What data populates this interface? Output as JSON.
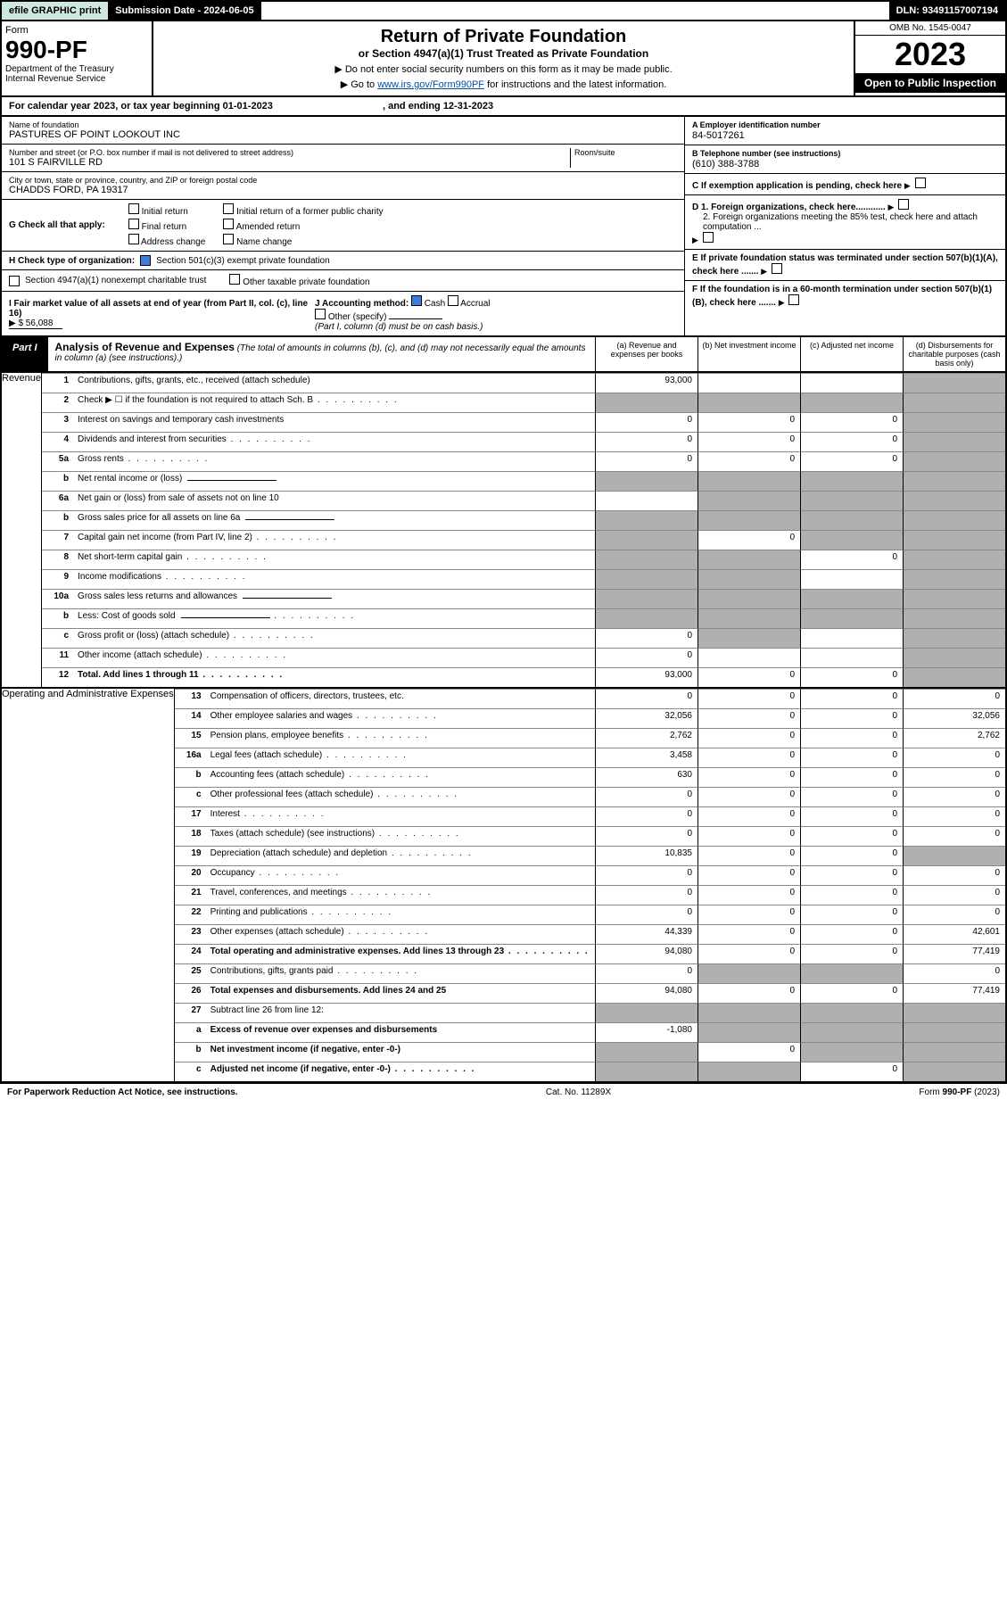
{
  "topbar": {
    "efile": "efile GRAPHIC print",
    "subdate_label": "Submission Date - 2024-06-05",
    "dln": "DLN: 93491157007194"
  },
  "header": {
    "form_label": "Form",
    "form_no": "990-PF",
    "dept": "Department of the Treasury\nInternal Revenue Service",
    "title": "Return of Private Foundation",
    "subtitle": "or Section 4947(a)(1) Trust Treated as Private Foundation",
    "note1": "▶ Do not enter social security numbers on this form as it may be made public.",
    "note2_pre": "▶ Go to ",
    "note2_link": "www.irs.gov/Form990PF",
    "note2_post": " for instructions and the latest information.",
    "omb": "OMB No. 1545-0047",
    "year": "2023",
    "open": "Open to Public Inspection"
  },
  "calyear": {
    "text": "For calendar year 2023, or tax year beginning 01-01-2023",
    "ending": ", and ending 12-31-2023"
  },
  "entity": {
    "name_lbl": "Name of foundation",
    "name": "PASTURES OF POINT LOOKOUT INC",
    "addr_lbl": "Number and street (or P.O. box number if mail is not delivered to street address)",
    "addr": "101 S FAIRVILLE RD",
    "room_lbl": "Room/suite",
    "city_lbl": "City or town, state or province, country, and ZIP or foreign postal code",
    "city": "CHADDS FORD, PA  19317",
    "ein_lbl": "A Employer identification number",
    "ein": "84-5017261",
    "tel_lbl": "B Telephone number (see instructions)",
    "tel": "(610) 388-3788",
    "c_lbl": "C If exemption application is pending, check here",
    "d1_lbl": "D 1. Foreign organizations, check here............",
    "d2_lbl": "2. Foreign organizations meeting the 85% test, check here and attach computation ...",
    "e_lbl": "E  If private foundation status was terminated under section 507(b)(1)(A), check here .......",
    "f_lbl": "F  If the foundation is in a 60-month termination under section 507(b)(1)(B), check here .......",
    "g_lbl": "G Check all that apply:",
    "g_opts": [
      "Initial return",
      "Final return",
      "Address change",
      "Initial return of a former public charity",
      "Amended return",
      "Name change"
    ],
    "h_lbl": "H Check type of organization:",
    "h1": "Section 501(c)(3) exempt private foundation",
    "h2": "Section 4947(a)(1) nonexempt charitable trust",
    "h3": "Other taxable private foundation",
    "i_lbl": "I Fair market value of all assets at end of year (from Part II, col. (c), line 16)",
    "i_val": "▶ $  56,088",
    "j_lbl": "J Accounting method:",
    "j_cash": "Cash",
    "j_accrual": "Accrual",
    "j_other": "Other (specify)",
    "j_note": "(Part I, column (d) must be on cash basis.)"
  },
  "part1": {
    "tab": "Part I",
    "title": "Analysis of Revenue and Expenses",
    "note": "(The total of amounts in columns (b), (c), and (d) may not necessarily equal the amounts in column (a) (see instructions).)",
    "col_a": "(a) Revenue and expenses per books",
    "col_b": "(b) Net investment income",
    "col_c": "(c) Adjusted net income",
    "col_d": "(d) Disbursements for charitable purposes (cash basis only)"
  },
  "sections": {
    "revenue": "Revenue",
    "expenses": "Operating and Administrative Expenses"
  },
  "rows": [
    {
      "n": "1",
      "t": "Contributions, gifts, grants, etc., received (attach schedule)",
      "a": "93,000",
      "b": "",
      "c": "",
      "d": "shade"
    },
    {
      "n": "2",
      "t": "Check ▶ ☐ if the foundation is not required to attach Sch. B",
      "a": "shade",
      "b": "shade",
      "c": "shade",
      "d": "shade",
      "dots": true
    },
    {
      "n": "3",
      "t": "Interest on savings and temporary cash investments",
      "a": "0",
      "b": "0",
      "c": "0",
      "d": "shade"
    },
    {
      "n": "4",
      "t": "Dividends and interest from securities",
      "a": "0",
      "b": "0",
      "c": "0",
      "d": "shade",
      "dots": true
    },
    {
      "n": "5a",
      "t": "Gross rents",
      "a": "0",
      "b": "0",
      "c": "0",
      "d": "shade",
      "dots": true
    },
    {
      "n": "b",
      "t": "Net rental income or (loss)",
      "a": "shade",
      "b": "shade",
      "c": "shade",
      "d": "shade",
      "inline": true
    },
    {
      "n": "6a",
      "t": "Net gain or (loss) from sale of assets not on line 10",
      "a": "",
      "b": "shade",
      "c": "shade",
      "d": "shade"
    },
    {
      "n": "b",
      "t": "Gross sales price for all assets on line 6a",
      "a": "shade",
      "b": "shade",
      "c": "shade",
      "d": "shade",
      "inline": true
    },
    {
      "n": "7",
      "t": "Capital gain net income (from Part IV, line 2)",
      "a": "shade",
      "b": "0",
      "c": "shade",
      "d": "shade",
      "dots": true
    },
    {
      "n": "8",
      "t": "Net short-term capital gain",
      "a": "shade",
      "b": "shade",
      "c": "0",
      "d": "shade",
      "dots": true
    },
    {
      "n": "9",
      "t": "Income modifications",
      "a": "shade",
      "b": "shade",
      "c": "",
      "d": "shade",
      "dots": true
    },
    {
      "n": "10a",
      "t": "Gross sales less returns and allowances",
      "a": "shade",
      "b": "shade",
      "c": "shade",
      "d": "shade",
      "inline": true
    },
    {
      "n": "b",
      "t": "Less: Cost of goods sold",
      "a": "shade",
      "b": "shade",
      "c": "shade",
      "d": "shade",
      "inline": true,
      "dots": true
    },
    {
      "n": "c",
      "t": "Gross profit or (loss) (attach schedule)",
      "a": "0",
      "b": "shade",
      "c": "",
      "d": "shade",
      "dots": true
    },
    {
      "n": "11",
      "t": "Other income (attach schedule)",
      "a": "0",
      "b": "",
      "c": "",
      "d": "shade",
      "dots": true
    },
    {
      "n": "12",
      "t": "Total. Add lines 1 through 11",
      "a": "93,000",
      "b": "0",
      "c": "0",
      "d": "shade",
      "bold": true,
      "dots": true
    }
  ],
  "exp_rows": [
    {
      "n": "13",
      "t": "Compensation of officers, directors, trustees, etc.",
      "a": "0",
      "b": "0",
      "c": "0",
      "d": "0"
    },
    {
      "n": "14",
      "t": "Other employee salaries and wages",
      "a": "32,056",
      "b": "0",
      "c": "0",
      "d": "32,056",
      "dots": true
    },
    {
      "n": "15",
      "t": "Pension plans, employee benefits",
      "a": "2,762",
      "b": "0",
      "c": "0",
      "d": "2,762",
      "dots": true
    },
    {
      "n": "16a",
      "t": "Legal fees (attach schedule)",
      "a": "3,458",
      "b": "0",
      "c": "0",
      "d": "0",
      "dots": true
    },
    {
      "n": "b",
      "t": "Accounting fees (attach schedule)",
      "a": "630",
      "b": "0",
      "c": "0",
      "d": "0",
      "dots": true
    },
    {
      "n": "c",
      "t": "Other professional fees (attach schedule)",
      "a": "0",
      "b": "0",
      "c": "0",
      "d": "0",
      "dots": true
    },
    {
      "n": "17",
      "t": "Interest",
      "a": "0",
      "b": "0",
      "c": "0",
      "d": "0",
      "dots": true
    },
    {
      "n": "18",
      "t": "Taxes (attach schedule) (see instructions)",
      "a": "0",
      "b": "0",
      "c": "0",
      "d": "0",
      "dots": true
    },
    {
      "n": "19",
      "t": "Depreciation (attach schedule) and depletion",
      "a": "10,835",
      "b": "0",
      "c": "0",
      "d": "shade",
      "dots": true
    },
    {
      "n": "20",
      "t": "Occupancy",
      "a": "0",
      "b": "0",
      "c": "0",
      "d": "0",
      "dots": true
    },
    {
      "n": "21",
      "t": "Travel, conferences, and meetings",
      "a": "0",
      "b": "0",
      "c": "0",
      "d": "0",
      "dots": true
    },
    {
      "n": "22",
      "t": "Printing and publications",
      "a": "0",
      "b": "0",
      "c": "0",
      "d": "0",
      "dots": true
    },
    {
      "n": "23",
      "t": "Other expenses (attach schedule)",
      "a": "44,339",
      "b": "0",
      "c": "0",
      "d": "42,601",
      "dots": true
    },
    {
      "n": "24",
      "t": "Total operating and administrative expenses. Add lines 13 through 23",
      "a": "94,080",
      "b": "0",
      "c": "0",
      "d": "77,419",
      "bold": true,
      "dots": true
    },
    {
      "n": "25",
      "t": "Contributions, gifts, grants paid",
      "a": "0",
      "b": "shade",
      "c": "shade",
      "d": "0",
      "dots": true
    },
    {
      "n": "26",
      "t": "Total expenses and disbursements. Add lines 24 and 25",
      "a": "94,080",
      "b": "0",
      "c": "0",
      "d": "77,419",
      "bold": true
    },
    {
      "n": "27",
      "t": "Subtract line 26 from line 12:",
      "a": "shade",
      "b": "shade",
      "c": "shade",
      "d": "shade"
    },
    {
      "n": "a",
      "t": "Excess of revenue over expenses and disbursements",
      "a": "-1,080",
      "b": "shade",
      "c": "shade",
      "d": "shade",
      "bold": true
    },
    {
      "n": "b",
      "t": "Net investment income (if negative, enter -0-)",
      "a": "shade",
      "b": "0",
      "c": "shade",
      "d": "shade",
      "bold": true
    },
    {
      "n": "c",
      "t": "Adjusted net income (if negative, enter -0-)",
      "a": "shade",
      "b": "shade",
      "c": "0",
      "d": "shade",
      "bold": true,
      "dots": true
    }
  ],
  "footer": {
    "left": "For Paperwork Reduction Act Notice, see instructions.",
    "mid": "Cat. No. 11289X",
    "right": "Form 990-PF (2023)"
  }
}
